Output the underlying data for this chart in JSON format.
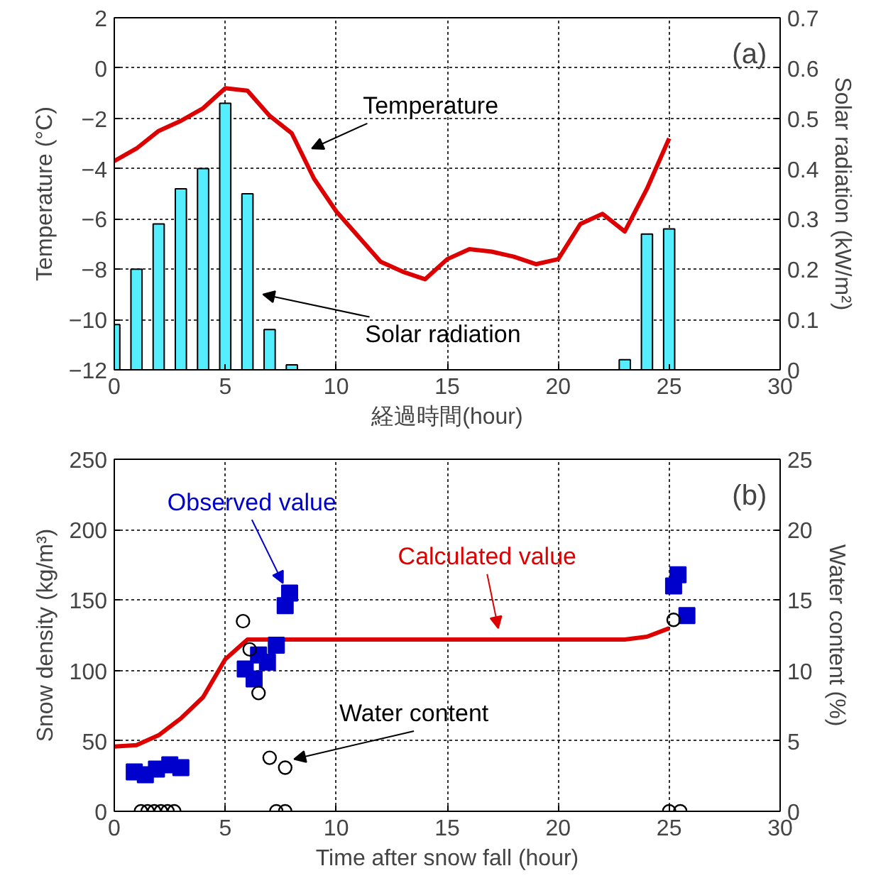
{
  "chart_data": [
    {
      "type": "bar",
      "xlabel": "経過時間(hour)",
      "ylabel": "Temperature (°C)",
      "y2label": "Solar radiation (kW/m²)",
      "xlim": [
        0,
        30
      ],
      "xticks": [
        0,
        5,
        10,
        15,
        20,
        25,
        30
      ],
      "ylim": [
        -12,
        2
      ],
      "yticks": [
        -12,
        -10,
        -8,
        -6,
        -4,
        -2,
        0,
        2
      ],
      "y2lim": [
        0,
        0.7
      ],
      "y2ticks": [
        0,
        0.1,
        0.2,
        0.3,
        0.4,
        0.5,
        0.6,
        0.7
      ],
      "grid": true,
      "series": [
        {
          "axis": "y2",
          "color": "#55eeff",
          "x": [
            0,
            1,
            2,
            3,
            4,
            5,
            6,
            7,
            8,
            23,
            24,
            25
          ],
          "values": [
            0.09,
            0.2,
            0.29,
            0.36,
            0.4,
            0.53,
            0.35,
            0.08,
            0.01,
            0.02,
            0.27,
            0.28
          ]
        },
        {
          "type": "line",
          "color": "#dd0000",
          "x": [
            0,
            1,
            2,
            3,
            4,
            5,
            6,
            7,
            8,
            9,
            10,
            11,
            12,
            13,
            14,
            15,
            16,
            17,
            18,
            19,
            20,
            21,
            22,
            23,
            24,
            25
          ],
          "values": [
            -3.7,
            -3.2,
            -2.5,
            -2.1,
            -1.6,
            -0.8,
            -0.9,
            -1.9,
            -2.6,
            -4.4,
            -5.7,
            -6.7,
            -7.7,
            -8.1,
            -8.4,
            -7.6,
            -7.2,
            -7.3,
            -7.5,
            -7.8,
            -7.6,
            -6.2,
            -5.8,
            -6.5,
            -4.8,
            -2.8
          ]
        }
      ],
      "annotations": [
        "(a)",
        "Temperature",
        "Solar radiation"
      ]
    },
    {
      "type": "scatter",
      "xlabel": "Time after snow fall (hour)",
      "ylabel": "Snow density (kg/m³)",
      "y2label": "Water content (%)",
      "xlim": [
        0,
        30
      ],
      "xticks": [
        0,
        5,
        10,
        15,
        20,
        25,
        30
      ],
      "ylim": [
        0,
        250
      ],
      "yticks": [
        0,
        50,
        100,
        150,
        200,
        250
      ],
      "y2lim": [
        0,
        25
      ],
      "y2ticks": [
        0,
        5,
        10,
        15,
        20,
        25
      ],
      "grid": true,
      "series": [
        {
          "type": "line",
          "color": "#dd0000",
          "x": [
            0,
            1,
            2,
            3,
            4,
            5,
            6,
            23,
            24,
            25
          ],
          "values": [
            46,
            47,
            54,
            66,
            81,
            108,
            122,
            122,
            124,
            130
          ]
        },
        {
          "marker": "square",
          "color": "#0000cc",
          "x": [
            0.9,
            1.4,
            1.9,
            2.5,
            3.0,
            5.9,
            6.3,
            6.5,
            6.9,
            7.3,
            7.7,
            7.9,
            25.2,
            25.4,
            25.8
          ],
          "values": [
            28,
            26,
            30,
            33,
            31,
            101,
            94,
            111,
            106,
            118,
            146,
            155,
            160,
            168,
            139
          ]
        },
        {
          "marker": "circle",
          "axis": "y2",
          "color": "#000000",
          "x": [
            5.8,
            6.1,
            6.5,
            7.0,
            7.7,
            25.2,
            1.2,
            1.5,
            1.8,
            2.1,
            2.4,
            2.7,
            7.3,
            7.7,
            25.0,
            25.5
          ],
          "values": [
            13.5,
            11.5,
            8.4,
            3.8,
            3.1,
            13.6,
            0,
            0,
            0,
            0,
            0,
            0,
            0,
            0,
            0,
            0
          ]
        }
      ],
      "annotations": [
        "(b)",
        {
          "text": "Observed value",
          "x": 7.6,
          "y": 162
        },
        "Calculated value",
        {
          "text": "Water content",
          "x": 8.1,
          "y": 37
        }
      ]
    }
  ]
}
